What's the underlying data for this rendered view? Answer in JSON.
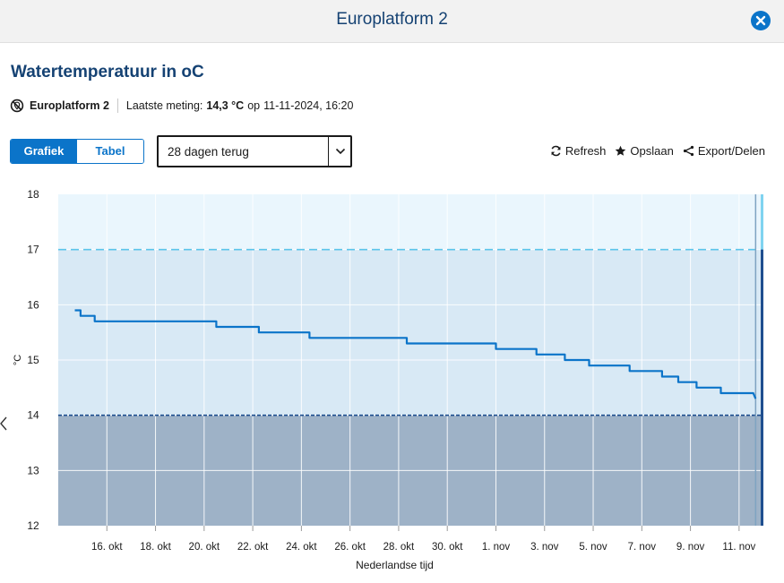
{
  "window": {
    "title": "Europlatform 2"
  },
  "header": {
    "title": "Watertemperatuur in oC"
  },
  "station": {
    "name": "Europlatform 2",
    "last_label": "Laatste meting:",
    "last_value": "14,3 °C",
    "on_word": "op",
    "last_time": "11-11-2024, 16:20"
  },
  "view_toggle": {
    "graph_label": "Grafiek",
    "table_label": "Tabel",
    "selected": "Grafiek"
  },
  "period_select": {
    "value": "28 dagen terug"
  },
  "actions": {
    "refresh": "Refresh",
    "save": "Opslaan",
    "export": "Export/Delen"
  },
  "colors": {
    "series": "#0b74c9",
    "upper_band": "#eaf6fd",
    "mid_band": "#d8e9f5",
    "low_band": "#9eb2c7",
    "threshold_high": "#5bc4eb",
    "threshold_low": "#1f4f8f",
    "accent": "#0b74c9"
  },
  "chart_data": {
    "type": "line",
    "xlabel": "Nederlandse tijd",
    "ylabel": "°C",
    "ylim": [
      12,
      18
    ],
    "yticks": [
      12,
      13,
      14,
      15,
      16,
      17,
      18
    ],
    "x_range": [
      "2024-10-14T00:00",
      "2024-11-12T00:00"
    ],
    "xticks": [
      {
        "date": "2024-10-16",
        "label": "16. okt"
      },
      {
        "date": "2024-10-18",
        "label": "18. okt"
      },
      {
        "date": "2024-10-20",
        "label": "20. okt"
      },
      {
        "date": "2024-10-22",
        "label": "22. okt"
      },
      {
        "date": "2024-10-24",
        "label": "24. okt"
      },
      {
        "date": "2024-10-26",
        "label": "26. okt"
      },
      {
        "date": "2024-10-28",
        "label": "28. okt"
      },
      {
        "date": "2024-10-30",
        "label": "30. okt"
      },
      {
        "date": "2024-11-01",
        "label": "1. nov"
      },
      {
        "date": "2024-11-03",
        "label": "3. nov"
      },
      {
        "date": "2024-11-05",
        "label": "5. nov"
      },
      {
        "date": "2024-11-07",
        "label": "7. nov"
      },
      {
        "date": "2024-11-09",
        "label": "9. nov"
      },
      {
        "date": "2024-11-11",
        "label": "11. nov"
      }
    ],
    "grid": true,
    "thresholds": [
      {
        "value": 17,
        "style": "dashed"
      },
      {
        "value": 14,
        "style": "dashed"
      }
    ],
    "series": [
      {
        "points": [
          {
            "x": "2024-10-14T16:20",
            "y": 15.9
          },
          {
            "x": "2024-10-14T22:00",
            "y": 15.9
          },
          {
            "x": "2024-10-14T22:00",
            "y": 15.8
          },
          {
            "x": "2024-10-15T12:00",
            "y": 15.8
          },
          {
            "x": "2024-10-15T12:00",
            "y": 15.7
          },
          {
            "x": "2024-10-20T12:00",
            "y": 15.7
          },
          {
            "x": "2024-10-20T12:00",
            "y": 15.6
          },
          {
            "x": "2024-10-22T06:00",
            "y": 15.6
          },
          {
            "x": "2024-10-22T06:00",
            "y": 15.5
          },
          {
            "x": "2024-10-24T08:00",
            "y": 15.5
          },
          {
            "x": "2024-10-24T08:00",
            "y": 15.4
          },
          {
            "x": "2024-10-28T08:00",
            "y": 15.4
          },
          {
            "x": "2024-10-28T08:00",
            "y": 15.3
          },
          {
            "x": "2024-11-01T00:00",
            "y": 15.3
          },
          {
            "x": "2024-11-01T00:00",
            "y": 15.2
          },
          {
            "x": "2024-11-02T16:00",
            "y": 15.2
          },
          {
            "x": "2024-11-02T16:00",
            "y": 15.1
          },
          {
            "x": "2024-11-03T20:00",
            "y": 15.1
          },
          {
            "x": "2024-11-03T20:00",
            "y": 15.0
          },
          {
            "x": "2024-11-04T20:00",
            "y": 15.0
          },
          {
            "x": "2024-11-04T20:00",
            "y": 14.9
          },
          {
            "x": "2024-11-06T12:00",
            "y": 14.9
          },
          {
            "x": "2024-11-06T12:00",
            "y": 14.8
          },
          {
            "x": "2024-11-07T20:00",
            "y": 14.8
          },
          {
            "x": "2024-11-07T20:00",
            "y": 14.7
          },
          {
            "x": "2024-11-08T12:00",
            "y": 14.7
          },
          {
            "x": "2024-11-08T12:00",
            "y": 14.6
          },
          {
            "x": "2024-11-09T06:00",
            "y": 14.6
          },
          {
            "x": "2024-11-09T06:00",
            "y": 14.5
          },
          {
            "x": "2024-11-10T06:00",
            "y": 14.5
          },
          {
            "x": "2024-11-10T06:00",
            "y": 14.4
          },
          {
            "x": "2024-11-11T14:00",
            "y": 14.4
          },
          {
            "x": "2024-11-11T16:20",
            "y": 14.3
          }
        ]
      }
    ],
    "current_marker": {
      "x": "2024-11-11T16:20"
    }
  }
}
